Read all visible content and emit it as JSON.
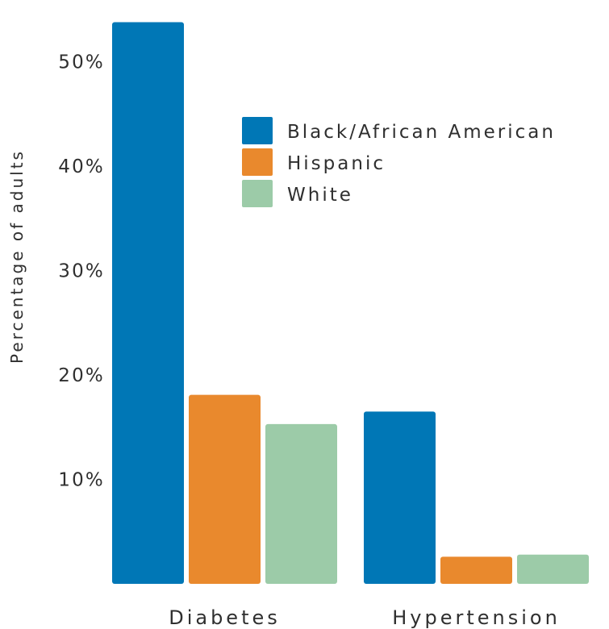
{
  "chart_data": {
    "type": "bar",
    "title": "",
    "xlabel": "",
    "ylabel": "Percentage of  adults",
    "categories": [
      "Diabetes",
      "Hypertension"
    ],
    "series": [
      {
        "name": "Black/African American",
        "color": "#0077b6",
        "values": [
          53.8,
          16.5
        ]
      },
      {
        "name": "Hispanic",
        "color": "#e9892d",
        "values": [
          18.1,
          2.6
        ]
      },
      {
        "name": "White",
        "color": "#9ccba8",
        "values": [
          15.3,
          2.8
        ]
      }
    ],
    "ylim": [
      0,
      55
    ],
    "yticks": [
      10,
      20,
      30,
      40,
      50
    ],
    "ytick_labels": [
      "10%",
      "20%",
      "30%",
      "40%",
      "50%"
    ],
    "legend_position": "top-right",
    "grid": false
  }
}
